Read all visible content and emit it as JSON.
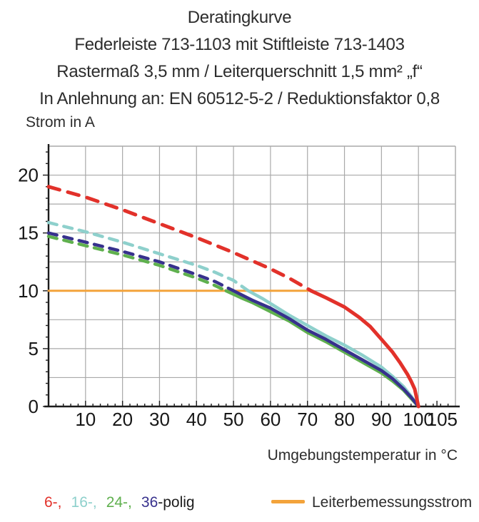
{
  "header": {
    "lines": [
      "Deratingkurve",
      "Federleiste 713-1103 mit Stiftleiste 713-1403",
      "Rastermaß 3,5 mm / Leiterquerschnitt 1,5 mm² „f“",
      "In Anlehnung an: EN 60512-5-2 / Reduktionsfaktor 0,8"
    ]
  },
  "chart_data": {
    "type": "line",
    "title": "Deratingkurve",
    "xlabel": "Umgebungstemperatur in °C",
    "ylabel": "Strom in A",
    "xlim": [
      0,
      110
    ],
    "ylim": [
      0,
      22.5
    ],
    "x_tick_labels": [
      10,
      20,
      30,
      40,
      50,
      60,
      70,
      80,
      90,
      100,
      105
    ],
    "y_tick_labels": [
      0,
      5,
      10,
      15,
      20
    ],
    "x_grid_step": 10,
    "y_grid_step": 2.5,
    "x_minor_tick_step": 2,
    "y_minor_tick_step": 1,
    "grid": true,
    "legend_position": "bottom",
    "colors": {
      "grid": "#a9a9a9",
      "axis": "#1c1c1c",
      "tick_label": "#171717"
    },
    "series": [
      {
        "name": "Leiterbemessungsstrom",
        "color": "#f3a33b",
        "style": "solid",
        "width": 3,
        "points": [
          [
            0,
            10
          ],
          [
            71,
            10
          ]
        ]
      },
      {
        "name": "16-polig",
        "color": "#8ed0cc",
        "style": "dashed-then-solid",
        "solid_from_x": 54,
        "width": 4.5,
        "dash": "12 10",
        "points": [
          [
            0,
            15.9
          ],
          [
            10,
            15.1
          ],
          [
            20,
            14.2
          ],
          [
            30,
            13.2
          ],
          [
            40,
            12.2
          ],
          [
            45,
            11.6
          ],
          [
            50,
            10.9
          ],
          [
            54,
            10
          ],
          [
            58,
            9.3
          ],
          [
            60,
            8.9
          ],
          [
            65,
            7.9
          ],
          [
            70,
            7.0
          ],
          [
            75,
            6.1
          ],
          [
            80,
            5.3
          ],
          [
            85,
            4.4
          ],
          [
            90,
            3.4
          ],
          [
            93,
            2.6
          ],
          [
            96,
            1.7
          ],
          [
            98,
            0.9
          ],
          [
            100,
            0
          ]
        ]
      },
      {
        "name": "24-polig",
        "color": "#5fb04e",
        "style": "dashed-then-solid",
        "solid_from_x": 48,
        "width": 4.5,
        "dash": "12 10",
        "points": [
          [
            0,
            14.7
          ],
          [
            10,
            13.9
          ],
          [
            20,
            13.1
          ],
          [
            30,
            12.2
          ],
          [
            40,
            11.1
          ],
          [
            44,
            10.6
          ],
          [
            48,
            10
          ],
          [
            52,
            9.4
          ],
          [
            55,
            9.0
          ],
          [
            60,
            8.2
          ],
          [
            65,
            7.4
          ],
          [
            70,
            6.4
          ],
          [
            75,
            5.6
          ],
          [
            80,
            4.7
          ],
          [
            85,
            3.8
          ],
          [
            90,
            2.9
          ],
          [
            93,
            2.2
          ],
          [
            96,
            1.4
          ],
          [
            98,
            0.7
          ],
          [
            100,
            0
          ]
        ]
      },
      {
        "name": "36-polig",
        "color": "#37318d",
        "style": "dashed-then-solid",
        "solid_from_x": 50,
        "width": 4.5,
        "dash": "12 10",
        "points": [
          [
            0,
            15.0
          ],
          [
            10,
            14.2
          ],
          [
            20,
            13.4
          ],
          [
            30,
            12.5
          ],
          [
            40,
            11.4
          ],
          [
            45,
            10.8
          ],
          [
            50,
            10
          ],
          [
            55,
            9.2
          ],
          [
            60,
            8.5
          ],
          [
            65,
            7.6
          ],
          [
            70,
            6.6
          ],
          [
            75,
            5.8
          ],
          [
            80,
            4.9
          ],
          [
            85,
            4.0
          ],
          [
            90,
            3.1
          ],
          [
            93,
            2.4
          ],
          [
            96,
            1.5
          ],
          [
            98,
            0.8
          ],
          [
            100,
            0
          ]
        ]
      },
      {
        "name": "6-polig",
        "color": "#e2312a",
        "style": "dashed-then-solid",
        "solid_from_x": 71,
        "width": 5,
        "dash": "16 12",
        "points": [
          [
            0,
            19
          ],
          [
            10,
            18.1
          ],
          [
            20,
            17.0
          ],
          [
            30,
            15.8
          ],
          [
            40,
            14.6
          ],
          [
            50,
            13.3
          ],
          [
            55,
            12.6
          ],
          [
            60,
            11.9
          ],
          [
            65,
            11.1
          ],
          [
            71,
            10
          ],
          [
            75,
            9.4
          ],
          [
            80,
            8.6
          ],
          [
            84,
            7.7
          ],
          [
            87,
            6.9
          ],
          [
            90,
            5.8
          ],
          [
            93,
            4.7
          ],
          [
            95,
            3.8
          ],
          [
            97,
            2.8
          ],
          [
            98,
            2.2
          ],
          [
            99,
            1.5
          ],
          [
            100,
            0
          ]
        ]
      }
    ]
  },
  "legend": {
    "pole_items": [
      {
        "label": "6-,",
        "color": "#e2312a"
      },
      {
        "label": "16-,",
        "color": "#8ed0cc"
      },
      {
        "label": "24-,",
        "color": "#5fb04e"
      },
      {
        "label": "36",
        "color": "#37318d"
      }
    ],
    "pole_suffix": "-polig",
    "suffix_color": "#1d1d1d",
    "rated_label": "Leiterbemessungsstrom",
    "rated_color": "#f3a33b"
  }
}
